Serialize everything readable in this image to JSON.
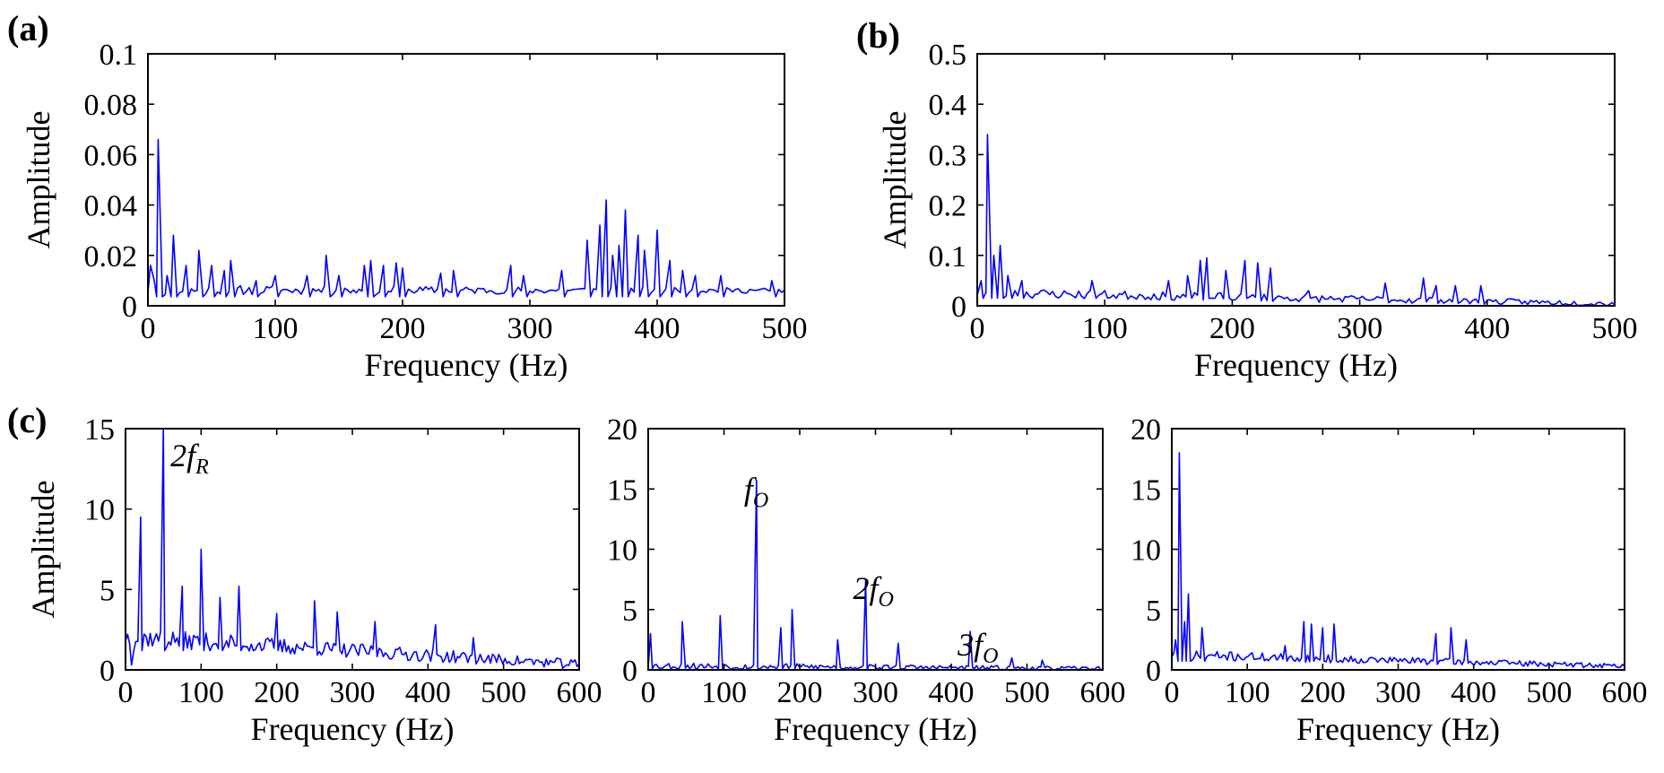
{
  "figure_labels": [
    "(a)",
    "(b)",
    "(c)"
  ],
  "chart_data": [
    {
      "id": "a",
      "type": "line",
      "panel_label": "(a)",
      "xlabel": "Frequency (Hz)",
      "ylabel": "Amplitude",
      "xlim": [
        0,
        500
      ],
      "ylim": [
        0,
        0.1
      ],
      "x_ticks": [
        0,
        100,
        200,
        300,
        400,
        500
      ],
      "y_ticks": [
        0,
        0.02,
        0.04,
        0.06,
        0.08,
        0.1
      ],
      "x_tick_labels": [
        "0",
        "100",
        "200",
        "300",
        "400",
        "500"
      ],
      "y_tick_labels": [
        "0",
        "0.02",
        "0.04",
        "0.06",
        "0.08",
        "0.1"
      ],
      "series": [
        {
          "name": "spectrum",
          "color": "#0000ff",
          "baseline": 0.006,
          "noise": 0.004,
          "seed": 11,
          "peaks": [
            [
              2,
              0.016
            ],
            [
              5,
              0.01
            ],
            [
              8,
              0.066
            ],
            [
              15,
              0.012
            ],
            [
              20,
              0.028
            ],
            [
              30,
              0.016
            ],
            [
              40,
              0.022
            ],
            [
              50,
              0.016
            ],
            [
              60,
              0.014
            ],
            [
              65,
              0.018
            ],
            [
              85,
              0.01
            ],
            [
              100,
              0.012
            ],
            [
              125,
              0.012
            ],
            [
              140,
              0.02
            ],
            [
              150,
              0.012
            ],
            [
              170,
              0.016
            ],
            [
              175,
              0.018
            ],
            [
              185,
              0.016
            ],
            [
              195,
              0.017
            ],
            [
              200,
              0.015
            ],
            [
              230,
              0.013
            ],
            [
              240,
              0.014
            ],
            [
              285,
              0.016
            ],
            [
              295,
              0.012
            ],
            [
              325,
              0.014
            ],
            [
              345,
              0.026
            ],
            [
              355,
              0.032
            ],
            [
              360,
              0.042
            ],
            [
              365,
              0.02
            ],
            [
              370,
              0.024
            ],
            [
              375,
              0.038
            ],
            [
              385,
              0.028
            ],
            [
              390,
              0.022
            ],
            [
              400,
              0.03
            ],
            [
              410,
              0.018
            ],
            [
              420,
              0.014
            ],
            [
              430,
              0.012
            ],
            [
              450,
              0.012
            ],
            [
              490,
              0.01
            ]
          ]
        }
      ]
    },
    {
      "id": "b",
      "type": "line",
      "panel_label": "(b)",
      "xlabel": "Frequency (Hz)",
      "ylabel": "Amplitude",
      "xlim": [
        0,
        500
      ],
      "ylim": [
        0,
        0.5
      ],
      "x_ticks": [
        0,
        100,
        200,
        300,
        400,
        500
      ],
      "y_ticks": [
        0,
        0.1,
        0.2,
        0.3,
        0.4,
        0.5
      ],
      "x_tick_labels": [
        "0",
        "100",
        "200",
        "300",
        "400",
        "500"
      ],
      "y_tick_labels": [
        "0",
        "0.1",
        "0.2",
        "0.3",
        "0.4",
        "0.5"
      ],
      "series": [
        {
          "name": "spectrum",
          "color": "#0000ff",
          "baseline": 0.025,
          "baseline_end": 0.004,
          "noise": 0.02,
          "seed": 23,
          "peaks": [
            [
              3,
              0.05
            ],
            [
              8,
              0.34
            ],
            [
              13,
              0.1
            ],
            [
              18,
              0.12
            ],
            [
              24,
              0.06
            ],
            [
              35,
              0.05
            ],
            [
              90,
              0.05
            ],
            [
              150,
              0.05
            ],
            [
              165,
              0.06
            ],
            [
              175,
              0.09
            ],
            [
              180,
              0.095
            ],
            [
              195,
              0.07
            ],
            [
              210,
              0.09
            ],
            [
              220,
              0.085
            ],
            [
              230,
              0.075
            ],
            [
              260,
              0.03
            ],
            [
              320,
              0.045
            ],
            [
              350,
              0.055
            ],
            [
              360,
              0.04
            ],
            [
              375,
              0.04
            ],
            [
              395,
              0.04
            ]
          ]
        }
      ]
    },
    {
      "id": "c1",
      "type": "line",
      "panel_label": "(c)",
      "xlabel": "Frequency (Hz)",
      "ylabel": "Amplitude",
      "xlim": [
        0,
        600
      ],
      "ylim": [
        0,
        15
      ],
      "x_ticks": [
        0,
        100,
        200,
        300,
        400,
        500,
        600
      ],
      "y_ticks": [
        0,
        5,
        10,
        15
      ],
      "x_tick_labels": [
        "0",
        "100",
        "200",
        "300",
        "400",
        "500",
        "600"
      ],
      "y_tick_labels": [
        "0",
        "5",
        "10",
        "15"
      ],
      "annotations": [
        {
          "text": "2f",
          "sub": "R",
          "x": 50,
          "y": 15
        }
      ],
      "series": [
        {
          "name": "spectrum",
          "color": "#0000ff",
          "baseline": 2.0,
          "baseline_end": 0.3,
          "noise": 1.2,
          "seed": 37,
          "peaks": [
            [
              8,
              0.3
            ],
            [
              20,
              9.5
            ],
            [
              50,
              15
            ],
            [
              75,
              5.2
            ],
            [
              100,
              7.5
            ],
            [
              125,
              4.5
            ],
            [
              150,
              5.2
            ],
            [
              200,
              3.5
            ],
            [
              250,
              4.3
            ],
            [
              280,
              3.6
            ],
            [
              330,
              3.0
            ],
            [
              410,
              2.8
            ],
            [
              460,
              2.0
            ]
          ]
        }
      ]
    },
    {
      "id": "c2",
      "type": "line",
      "xlabel": "Frequency (Hz)",
      "ylabel": "",
      "xlim": [
        0,
        600
      ],
      "ylim": [
        0,
        20
      ],
      "x_ticks": [
        0,
        100,
        200,
        300,
        400,
        500,
        600
      ],
      "y_ticks": [
        0,
        5,
        10,
        15,
        20
      ],
      "x_tick_labels": [
        "0",
        "100",
        "200",
        "300",
        "400",
        "500",
        "600"
      ],
      "y_tick_labels": [
        "0",
        "5",
        "10",
        "15",
        "20"
      ],
      "annotations": [
        {
          "text": "f",
          "sub": "O",
          "x": 143,
          "y": 17.2
        },
        {
          "text": "2f",
          "sub": "O",
          "x": 287,
          "y": 9.0
        },
        {
          "text": "3f",
          "sub": "O",
          "x": 425,
          "y": 4.3
        }
      ],
      "series": [
        {
          "name": "spectrum",
          "color": "#0000ff",
          "baseline": 0.3,
          "baseline_end": 0.1,
          "noise": 0.6,
          "seed": 53,
          "peaks": [
            [
              3,
              3
            ],
            [
              45,
              4
            ],
            [
              95,
              4.5
            ],
            [
              143,
              15.7
            ],
            [
              175,
              3.5
            ],
            [
              190,
              5
            ],
            [
              250,
              2.5
            ],
            [
              287,
              7.4
            ],
            [
              330,
              2.2
            ],
            [
              425,
              3.2
            ],
            [
              480,
              1
            ],
            [
              520,
              0.8
            ]
          ]
        }
      ]
    },
    {
      "id": "c3",
      "type": "line",
      "xlabel": "Frequency (Hz)",
      "ylabel": "",
      "xlim": [
        0,
        600
      ],
      "ylim": [
        0,
        20
      ],
      "x_ticks": [
        0,
        100,
        200,
        300,
        400,
        500,
        600
      ],
      "y_ticks": [
        0,
        5,
        10,
        15,
        20
      ],
      "x_tick_labels": [
        "0",
        "100",
        "200",
        "300",
        "400",
        "500",
        "600"
      ],
      "y_tick_labels": [
        "0",
        "5",
        "10",
        "15",
        "20"
      ],
      "series": [
        {
          "name": "spectrum",
          "color": "#0000ff",
          "baseline": 1.2,
          "baseline_end": 0.3,
          "noise": 0.8,
          "seed": 71,
          "peaks": [
            [
              5,
              2.5
            ],
            [
              10,
              18
            ],
            [
              17,
              4
            ],
            [
              22,
              6.3
            ],
            [
              40,
              3.5
            ],
            [
              150,
              2
            ],
            [
              175,
              4
            ],
            [
              185,
              3.8
            ],
            [
              200,
              3.5
            ],
            [
              215,
              3.8
            ],
            [
              350,
              3
            ],
            [
              370,
              3.5
            ],
            [
              390,
              2.5
            ]
          ]
        }
      ]
    }
  ]
}
